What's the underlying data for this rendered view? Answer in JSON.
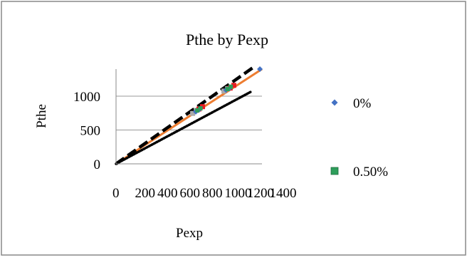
{
  "chart_data": {
    "type": "scatter",
    "title": "Pthe by Pexp",
    "xlabel": "Pexp",
    "ylabel": "Pthe",
    "xlim": [
      0,
      1400
    ],
    "ylim": [
      0,
      1400
    ],
    "x_ticks": [
      "0",
      "200",
      "400",
      "600",
      "800",
      "1000",
      "1200",
      "1400"
    ],
    "y_ticks": [
      "0",
      "500",
      "1000"
    ],
    "y_tick_values": [
      0,
      500,
      1000
    ],
    "grid": "horizontal",
    "legend_placement": "right",
    "series": [
      {
        "name": "0%",
        "marker": "diamond",
        "color": "#4472c4",
        "x": [
          765,
          800,
          1055,
          1090,
          1380
        ],
        "y": [
          770,
          805,
          1090,
          1120,
          1400
        ]
      },
      {
        "name": "0.50%",
        "marker": "square",
        "color": "#2e9e5b",
        "x": [
          780,
          810,
          1070,
          1100
        ],
        "y": [
          790,
          820,
          1105,
          1140
        ]
      }
    ],
    "overlays": [
      {
        "color": "#aaaaaa",
        "x": [
          735,
          770,
          1035,
          1070
        ],
        "y": [
          745,
          790,
          1075,
          1110
        ]
      },
      {
        "color": "#e81c23",
        "x": [
          795,
          830,
          1095,
          1130
        ],
        "y": [
          810,
          845,
          1120,
          1160
        ]
      }
    ],
    "reference_lines": [
      {
        "style": "solid",
        "color": "#ed7d31",
        "from": [
          0,
          0
        ],
        "to": [
          1400,
          1400
        ]
      },
      {
        "style": "dashed",
        "color": "#000000",
        "from": [
          0,
          0
        ],
        "to": [
          1330,
          1440
        ]
      },
      {
        "style": "dotted",
        "color": "#000000",
        "from": [
          0,
          0
        ],
        "to": [
          1300,
          1070
        ]
      }
    ]
  }
}
